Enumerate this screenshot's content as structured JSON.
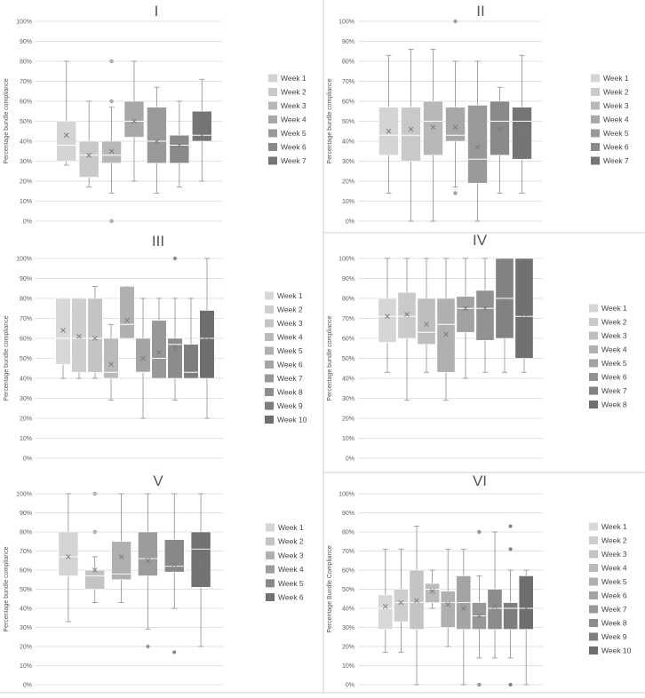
{
  "chart_data": [
    {
      "type": "box",
      "title": "I",
      "ylabel": "Percentage bundle compliance",
      "ylim": [
        0,
        100
      ],
      "y_ticks": [
        "0%",
        "10%",
        "20%",
        "30%",
        "40%",
        "50%",
        "60%",
        "70%",
        "80%",
        "90%",
        "100%"
      ],
      "grid": true,
      "legend": "right",
      "series": [
        {
          "name": "Week 1",
          "min": 28,
          "q1": 30,
          "median": 38,
          "mean": 43,
          "q3": 50,
          "max": 80,
          "outliers": [],
          "color": "#d4d4d4"
        },
        {
          "name": "Week 2",
          "min": 17,
          "q1": 22,
          "median": 33,
          "mean": 33,
          "q3": 40,
          "max": 60,
          "outliers": [],
          "color": "#c9c9c9"
        },
        {
          "name": "Week 3",
          "min": 14,
          "q1": 29,
          "median": 33,
          "mean": 35,
          "q3": 40,
          "max": 57,
          "outliers": [
            0,
            60,
            80
          ],
          "color": "#b8b8b8"
        },
        {
          "name": "Week 4",
          "min": 20,
          "q1": 42,
          "median": 50,
          "mean": 50,
          "q3": 60,
          "max": 80,
          "outliers": [],
          "color": "#a8a8a8"
        },
        {
          "name": "Week 5",
          "min": 14,
          "q1": 29,
          "median": 40,
          "mean": 40,
          "q3": 57,
          "max": 67,
          "outliers": [],
          "color": "#999999"
        },
        {
          "name": "Week 6",
          "min": 17,
          "q1": 29,
          "median": 38,
          "mean": 38,
          "q3": 43,
          "max": 60,
          "outliers": [],
          "color": "#8a8a8a"
        },
        {
          "name": "Week 7",
          "min": 20,
          "q1": 40,
          "median": 43,
          "mean": 43,
          "q3": 55,
          "max": 71,
          "outliers": [],
          "color": "#757575"
        }
      ]
    },
    {
      "type": "box",
      "title": "II",
      "ylabel": "Percentage bundle compliance",
      "ylim": [
        0,
        100
      ],
      "y_ticks": [
        "0%",
        "10%",
        "20%",
        "30%",
        "40%",
        "50%",
        "60%",
        "70%",
        "80%",
        "90%",
        "100%"
      ],
      "grid": true,
      "legend": "right",
      "series": [
        {
          "name": "Week 1",
          "min": 14,
          "q1": 33,
          "median": 43,
          "mean": 45,
          "q3": 57,
          "max": 83,
          "outliers": [],
          "color": "#d4d4d4"
        },
        {
          "name": "Week 2",
          "min": 0,
          "q1": 30,
          "median": 43,
          "mean": 46,
          "q3": 57,
          "max": 86,
          "outliers": [],
          "color": "#c9c9c9"
        },
        {
          "name": "Week 3",
          "min": 0,
          "q1": 33,
          "median": 50,
          "mean": 47,
          "q3": 60,
          "max": 86,
          "outliers": [],
          "color": "#b8b8b8"
        },
        {
          "name": "Week 4",
          "min": 17,
          "q1": 40,
          "median": 43,
          "mean": 47,
          "q3": 57,
          "max": 80,
          "outliers": [
            100,
            14
          ],
          "color": "#a8a8a8"
        },
        {
          "name": "Week 5",
          "min": 0,
          "q1": 19,
          "median": 31,
          "mean": 37,
          "q3": 58,
          "max": 80,
          "outliers": [],
          "color": "#999999"
        },
        {
          "name": "Week 6",
          "min": 14,
          "q1": 33,
          "median": 50,
          "mean": 46,
          "q3": 60,
          "max": 67,
          "outliers": [],
          "color": "#8a8a8a"
        },
        {
          "name": "Week 7",
          "min": 14,
          "q1": 31,
          "median": 50,
          "mean": 47,
          "q3": 57,
          "max": 83,
          "outliers": [],
          "color": "#757575"
        }
      ]
    },
    {
      "type": "box",
      "title": "III",
      "ylabel": "Percentage bundle compliance",
      "ylim": [
        0,
        100
      ],
      "y_ticks": [
        "0%",
        "10%",
        "20%",
        "30%",
        "40%",
        "50%",
        "60%",
        "70%",
        "80%",
        "90%",
        "100%"
      ],
      "grid": true,
      "legend": "right",
      "series": [
        {
          "name": "Week 1",
          "min": 40,
          "q1": 47,
          "median": 60,
          "mean": 64,
          "q3": 80,
          "max": 80,
          "outliers": [],
          "color": "#d8d8d8"
        },
        {
          "name": "Week 2",
          "min": 40,
          "q1": 43,
          "median": 60,
          "mean": 61,
          "q3": 80,
          "max": 80,
          "outliers": [],
          "color": "#cecece"
        },
        {
          "name": "Week 3",
          "min": 40,
          "q1": 43,
          "median": 60,
          "mean": 60,
          "q3": 80,
          "max": 86,
          "outliers": [],
          "color": "#c4c4c4"
        },
        {
          "name": "Week 4",
          "min": 29,
          "q1": 40,
          "median": 43,
          "mean": 47,
          "q3": 60,
          "max": 67,
          "outliers": [],
          "color": "#bababa"
        },
        {
          "name": "Week 5",
          "min": 60,
          "q1": 60,
          "median": 67,
          "mean": 69,
          "q3": 86,
          "max": 86,
          "outliers": [],
          "color": "#b0b0b0"
        },
        {
          "name": "Week 6",
          "min": 20,
          "q1": 43,
          "median": 43,
          "mean": 50,
          "q3": 60,
          "max": 80,
          "outliers": [],
          "color": "#a4a4a4"
        },
        {
          "name": "Week 7",
          "min": 40,
          "q1": 40,
          "median": 50,
          "mean": 53,
          "q3": 69,
          "max": 80,
          "outliers": [],
          "color": "#989898"
        },
        {
          "name": "Week 8",
          "min": 29,
          "q1": 40,
          "median": 57,
          "mean": 55,
          "q3": 60,
          "max": 80,
          "outliers": [
            100
          ],
          "color": "#8c8c8c"
        },
        {
          "name": "Week 9",
          "min": 40,
          "q1": 40,
          "median": 43,
          "mean": 48,
          "q3": 57,
          "max": 80,
          "outliers": [],
          "color": "#7e7e7e"
        },
        {
          "name": "Week 10",
          "min": 20,
          "q1": 40,
          "median": 60,
          "mean": 59,
          "q3": 74,
          "max": 100,
          "outliers": [],
          "color": "#6e6e6e"
        }
      ]
    },
    {
      "type": "box",
      "title": "IV",
      "ylabel": "Percentage bundle compliance",
      "ylim": [
        0,
        100
      ],
      "y_ticks": [
        "0%",
        "10%",
        "20%",
        "30%",
        "40%",
        "50%",
        "60%",
        "70%",
        "80%",
        "90%",
        "100%"
      ],
      "grid": true,
      "legend": "right",
      "series": [
        {
          "name": "Week 1",
          "min": 43,
          "q1": 58,
          "median": 71,
          "mean": 71,
          "q3": 80,
          "max": 100,
          "outliers": [],
          "color": "#d6d6d6"
        },
        {
          "name": "Week 2",
          "min": 29,
          "q1": 60,
          "median": 71,
          "mean": 72,
          "q3": 83,
          "max": 100,
          "outliers": [],
          "color": "#cacaca"
        },
        {
          "name": "Week 3",
          "min": 43,
          "q1": 57,
          "median": 63,
          "mean": 67,
          "q3": 80,
          "max": 100,
          "outliers": [],
          "color": "#bebebe"
        },
        {
          "name": "Week 4",
          "min": 29,
          "q1": 43,
          "median": 67,
          "mean": 62,
          "q3": 80,
          "max": 100,
          "outliers": [],
          "color": "#b0b0b0"
        },
        {
          "name": "Week 5",
          "min": 40,
          "q1": 63,
          "median": 75,
          "mean": 75,
          "q3": 81,
          "max": 100,
          "outliers": [],
          "color": "#a2a2a2"
        },
        {
          "name": "Week 6",
          "min": 43,
          "q1": 59,
          "median": 75,
          "mean": 75,
          "q3": 84,
          "max": 100,
          "outliers": [],
          "color": "#929292"
        },
        {
          "name": "Week 7",
          "min": 43,
          "q1": 60,
          "median": 80,
          "mean": 77,
          "q3": 100,
          "max": 100,
          "outliers": [],
          "color": "#828282"
        },
        {
          "name": "Week 8",
          "min": 43,
          "q1": 50,
          "median": 71,
          "mean": 72,
          "q3": 100,
          "max": 100,
          "outliers": [],
          "color": "#707070"
        }
      ]
    },
    {
      "type": "box",
      "title": "V",
      "ylabel": "Percentage bundle compliance",
      "ylim": [
        0,
        100
      ],
      "y_ticks": [
        "0%",
        "10%",
        "20%",
        "30%",
        "40%",
        "50%",
        "60%",
        "70%",
        "80%",
        "90%",
        "100%"
      ],
      "grid": true,
      "legend": "right",
      "series": [
        {
          "name": "Week 1",
          "min": 33,
          "q1": 57,
          "median": 67,
          "mean": 67,
          "q3": 80,
          "max": 100,
          "outliers": [],
          "color": "#d4d4d4"
        },
        {
          "name": "Week 2",
          "min": 43,
          "q1": 50,
          "median": 57,
          "mean": 60,
          "q3": 60,
          "max": 67,
          "outliers": [
            80,
            100
          ],
          "color": "#c4c4c4"
        },
        {
          "name": "Week 3",
          "min": 43,
          "q1": 55,
          "median": 58,
          "mean": 67,
          "q3": 75,
          "max": 100,
          "outliers": [],
          "color": "#b0b0b0"
        },
        {
          "name": "Week 4",
          "min": 29,
          "q1": 57,
          "median": 66,
          "mean": 65,
          "q3": 80,
          "max": 100,
          "outliers": [
            20
          ],
          "color": "#9c9c9c"
        },
        {
          "name": "Week 5",
          "min": 40,
          "q1": 59,
          "median": 62,
          "mean": 63,
          "q3": 76,
          "max": 100,
          "outliers": [
            17
          ],
          "color": "#888888"
        },
        {
          "name": "Week 6",
          "min": 20,
          "q1": 51,
          "median": 71,
          "mean": 63,
          "q3": 80,
          "max": 100,
          "outliers": [],
          "color": "#727272"
        }
      ]
    },
    {
      "type": "box",
      "title": "VI",
      "ylabel": "Percentage Bundle Compliance",
      "ylim": [
        0,
        100
      ],
      "y_ticks": [
        "0%",
        "10%",
        "20%",
        "30%",
        "40%",
        "50%",
        "60%",
        "70%",
        "80%",
        "90%",
        "100%"
      ],
      "grid": true,
      "legend": "right",
      "series": [
        {
          "name": "Week 1",
          "min": 17,
          "q1": 29,
          "median": 40,
          "mean": 41,
          "q3": 47,
          "max": 71,
          "outliers": [],
          "color": "#d8d8d8"
        },
        {
          "name": "Week 2",
          "min": 17,
          "q1": 33,
          "median": 43,
          "mean": 43,
          "q3": 50,
          "max": 71,
          "outliers": [],
          "color": "#cecece"
        },
        {
          "name": "Week 3",
          "min": 0,
          "q1": 29,
          "median": 43,
          "mean": 44,
          "q3": 60,
          "max": 83,
          "outliers": [],
          "color": "#c4c4c4"
        },
        {
          "name": "Week 4",
          "min": 40,
          "q1": 43,
          "median": 50,
          "mean": 49,
          "q3": 53,
          "max": 60,
          "outliers": [],
          "color": "#bababa"
        },
        {
          "name": "Week 5",
          "min": 20,
          "q1": 30,
          "median": 43,
          "mean": 42,
          "q3": 49,
          "max": 71,
          "outliers": [],
          "color": "#b0b0b0"
        },
        {
          "name": "Week 6",
          "min": 0,
          "q1": 29,
          "median": 43,
          "mean": 40,
          "q3": 57,
          "max": 71,
          "outliers": [],
          "color": "#a4a4a4"
        },
        {
          "name": "Week 7",
          "min": 14,
          "q1": 29,
          "median": 36,
          "mean": 36,
          "q3": 43,
          "max": 57,
          "outliers": [
            0,
            80
          ],
          "color": "#989898"
        },
        {
          "name": "Week 8",
          "min": 14,
          "q1": 29,
          "median": 40,
          "mean": 41,
          "q3": 50,
          "max": 80,
          "outliers": [],
          "color": "#8c8c8c"
        },
        {
          "name": "Week 9",
          "min": 14,
          "q1": 29,
          "median": 40,
          "mean": 38,
          "q3": 43,
          "max": 60,
          "outliers": [
            0,
            71,
            83
          ],
          "color": "#7e7e7e"
        },
        {
          "name": "Week 10",
          "min": 0,
          "q1": 29,
          "median": 40,
          "mean": 40,
          "q3": 57,
          "max": 60,
          "outliers": [],
          "color": "#6e6e6e"
        }
      ]
    }
  ]
}
